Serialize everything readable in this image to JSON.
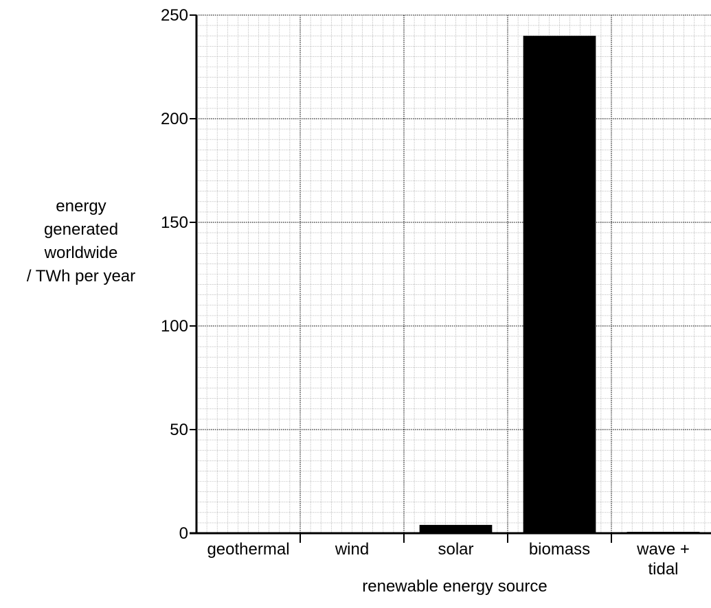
{
  "chart_data": {
    "type": "bar",
    "categories": [
      [
        "geothermal"
      ],
      [
        "wind"
      ],
      [
        "solar"
      ],
      [
        "biomass"
      ],
      [
        "wave +",
        "tidal"
      ]
    ],
    "values": [
      0,
      0,
      4,
      240,
      0.5
    ],
    "xlabel": "renewable energy source",
    "ylabel": [
      "energy",
      "generated",
      "worldwide",
      "/ TWh per year"
    ],
    "yticks": [
      0,
      50,
      100,
      150,
      200,
      250
    ],
    "ylim": [
      0,
      250
    ],
    "grid": true,
    "colors": {
      "bar": "#000000",
      "major_grid": "#000000",
      "minor_grid": "#9a9a9a",
      "axis": "#000000"
    }
  }
}
